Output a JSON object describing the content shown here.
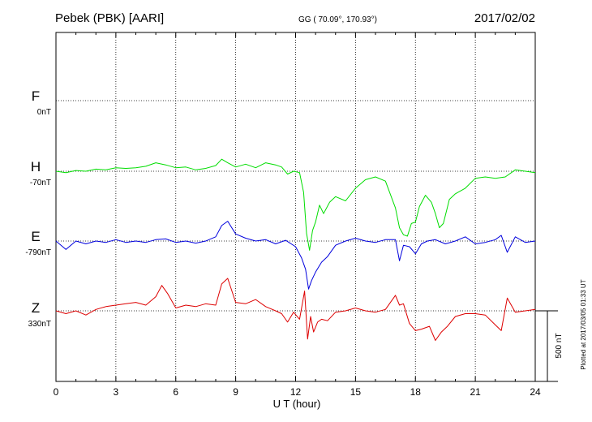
{
  "header": {
    "station": "Pebek (PBK)  [AARI]",
    "coords": "GG ( 70.09°, 170.93°)",
    "date": "2017/02/02"
  },
  "plotted_note": "Plotted at 2017/03/05 01:33 UT",
  "colors": {
    "F": "#ffaa00",
    "H": "#00dd00",
    "E": "#0000dd",
    "Z": "#dd0000"
  },
  "chart_data": {
    "type": "line",
    "xlabel": "U T (hour)",
    "xlim": [
      0,
      24
    ],
    "xticks": [
      "0",
      "3",
      "6",
      "9",
      "12",
      "15",
      "18",
      "21",
      "24"
    ],
    "scale_label": "500 nT",
    "series": [
      {
        "name": "F",
        "offset": "0nT",
        "x": [],
        "values": []
      },
      {
        "name": "H",
        "offset": "-70nT",
        "x": [
          0,
          0.5,
          1,
          1.5,
          2,
          2.5,
          3,
          3.5,
          4,
          4.5,
          5,
          5.5,
          6,
          6.5,
          7,
          7.5,
          8,
          8.3,
          8.6,
          9,
          9.5,
          10,
          10.5,
          11,
          11.3,
          11.6,
          11.9,
          12.2,
          12.4,
          12.55,
          12.7,
          12.85,
          13,
          13.2,
          13.4,
          13.7,
          14,
          14.5,
          15,
          15.5,
          16,
          16.5,
          17,
          17.2,
          17.4,
          17.6,
          17.8,
          18,
          18.2,
          18.5,
          18.8,
          19,
          19.2,
          19.4,
          19.7,
          20,
          20.5,
          21,
          21.5,
          22,
          22.5,
          23,
          23.5,
          24
        ],
        "values": [
          0,
          -10,
          5,
          0,
          15,
          10,
          25,
          20,
          25,
          35,
          60,
          45,
          25,
          30,
          10,
          20,
          40,
          85,
          60,
          30,
          50,
          25,
          60,
          45,
          30,
          -20,
          0,
          -10,
          -150,
          -440,
          -560,
          -420,
          -360,
          -240,
          -300,
          -220,
          -180,
          -210,
          -120,
          -60,
          -40,
          -70,
          -260,
          -400,
          -450,
          -460,
          -370,
          -360,
          -250,
          -170,
          -220,
          -300,
          -400,
          -370,
          -200,
          -160,
          -120,
          -50,
          -40,
          -50,
          -40,
          10,
          0,
          -10
        ]
      },
      {
        "name": "E",
        "offset": "-790nT",
        "x": [
          0,
          0.5,
          1,
          1.5,
          2,
          2.5,
          3,
          3.5,
          4,
          4.5,
          5,
          5.5,
          6,
          6.5,
          7,
          7.5,
          8,
          8.3,
          8.6,
          9,
          9.5,
          10,
          10.5,
          11,
          11.5,
          12,
          12.3,
          12.5,
          12.65,
          12.8,
          13,
          13.3,
          13.6,
          14,
          14.5,
          15,
          15.5,
          16,
          16.5,
          17,
          17.2,
          17.4,
          17.7,
          18,
          18.3,
          18.6,
          19,
          19.5,
          20,
          20.5,
          21,
          21.5,
          22,
          22.3,
          22.6,
          23,
          23.5,
          24
        ],
        "values": [
          0,
          -60,
          0,
          -20,
          0,
          -10,
          10,
          -10,
          0,
          -10,
          10,
          15,
          -10,
          0,
          -15,
          0,
          30,
          110,
          140,
          50,
          20,
          0,
          10,
          -20,
          5,
          -40,
          -120,
          -200,
          -340,
          -280,
          -220,
          -150,
          -110,
          -30,
          0,
          20,
          0,
          -10,
          10,
          10,
          -140,
          -30,
          -40,
          -90,
          -20,
          0,
          10,
          -20,
          0,
          30,
          -20,
          -10,
          10,
          40,
          -80,
          30,
          -10,
          0
        ]
      },
      {
        "name": "Z",
        "offset": "330nT",
        "x": [
          0,
          0.5,
          1,
          1.5,
          2,
          2.5,
          3,
          3.5,
          4,
          4.5,
          5,
          5.3,
          5.6,
          6,
          6.5,
          7,
          7.5,
          8,
          8.3,
          8.6,
          9,
          9.5,
          10,
          10.5,
          11,
          11.3,
          11.6,
          11.9,
          12.2,
          12.45,
          12.6,
          12.75,
          12.9,
          13.1,
          13.3,
          13.6,
          14,
          14.5,
          15,
          15.5,
          16,
          16.5,
          17,
          17.2,
          17.4,
          17.7,
          18,
          18.3,
          18.7,
          19,
          19.3,
          19.6,
          20,
          20.5,
          21,
          21.5,
          22,
          22.3,
          22.6,
          23,
          23.5,
          24
        ],
        "values": [
          0,
          -20,
          0,
          -30,
          10,
          30,
          40,
          50,
          60,
          40,
          100,
          180,
          120,
          20,
          40,
          30,
          50,
          40,
          190,
          230,
          60,
          50,
          80,
          30,
          0,
          -20,
          -80,
          -10,
          -60,
          140,
          -200,
          -40,
          -150,
          -80,
          -60,
          -70,
          -10,
          0,
          20,
          0,
          -10,
          10,
          110,
          40,
          50,
          -90,
          -140,
          -130,
          -110,
          -210,
          -150,
          -110,
          -40,
          -20,
          -20,
          -30,
          -100,
          -140,
          90,
          -10,
          0,
          10
        ]
      }
    ]
  }
}
